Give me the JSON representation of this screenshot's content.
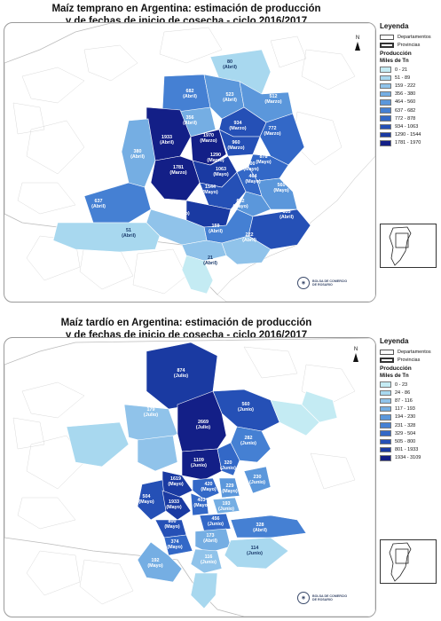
{
  "maps": [
    {
      "title_line1": "Maíz temprano en Argentina: estimación de producción",
      "title_line2": "y de fechas de inicio de cosecha - ciclo 2016/2017",
      "north_label": "N",
      "logo_text_1": "BOLSA DE COMERCIO",
      "logo_text_2": "DE ROSARIO",
      "legend": {
        "title": "Leyenda",
        "item_departamentos": "Departamentos",
        "item_provincias": "Provincias",
        "subtitle": "Producción",
        "units": "Miles de Tn",
        "classes": [
          {
            "label": "0 - 21",
            "color": "#c4ebf3"
          },
          {
            "label": "51 - 89",
            "color": "#a8d8ef"
          },
          {
            "label": "159 - 222",
            "color": "#90c3ea"
          },
          {
            "label": "356 - 380",
            "color": "#75aee3"
          },
          {
            "label": "464 - 560",
            "color": "#5b97db"
          },
          {
            "label": "637 - 682",
            "color": "#4580d3"
          },
          {
            "label": "772 - 878",
            "color": "#3368c7"
          },
          {
            "label": "934 - 1063",
            "color": "#2550b6"
          },
          {
            "label": "1290 - 1544",
            "color": "#1a3aa2"
          },
          {
            "label": "1781 - 1970",
            "color": "#131f87"
          }
        ]
      },
      "zones": [
        {
          "value": "80",
          "period": "(Abril)"
        },
        {
          "value": "682",
          "period": "(Abril)"
        },
        {
          "value": "523",
          "period": "(Abril)"
        },
        {
          "value": "512",
          "period": "(Marzo)"
        },
        {
          "value": "356",
          "period": "(Abril)"
        },
        {
          "value": "934",
          "period": "(Marzo)"
        },
        {
          "value": "772",
          "period": "(Marzo)"
        },
        {
          "value": "1933",
          "period": "(Abril)"
        },
        {
          "value": "1970",
          "period": "(Marzo)"
        },
        {
          "value": "960",
          "period": "(Marzo)"
        },
        {
          "value": "380",
          "period": "(Abril)"
        },
        {
          "value": "1290",
          "period": "(Marzo)"
        },
        {
          "value": "878",
          "period": "(Mayo)"
        },
        {
          "value": "1781",
          "period": "(Marzo)"
        },
        {
          "value": "1063",
          "period": "(Mayo)"
        },
        {
          "value": "800",
          "period": "(Mayo)"
        },
        {
          "value": "464",
          "period": "(Mayo)"
        },
        {
          "value": "1544",
          "period": "(Mayo)"
        },
        {
          "value": "560",
          "period": "(Mayo)"
        },
        {
          "value": "637",
          "period": "(Abril)"
        },
        {
          "value": "642",
          "period": "(Mayo)"
        },
        {
          "value": "208",
          "period": "(Mayo)"
        },
        {
          "value": "835",
          "period": "(Abril)"
        },
        {
          "value": "51",
          "period": "(Abril)"
        },
        {
          "value": "159",
          "period": "(Abril)"
        },
        {
          "value": "222",
          "period": "(Abril)"
        },
        {
          "value": "21",
          "period": "(Abril)"
        }
      ]
    },
    {
      "title_line1": "Maíz tardío en Argentina: estimación de producción",
      "title_line2": "y de fechas de inicio de cosecha - ciclo 2016/2017",
      "north_label": "N",
      "logo_text_1": "BOLSA DE COMERCIO",
      "logo_text_2": "DE ROSARIO",
      "legend": {
        "title": "Leyenda",
        "item_departamentos": "Departamentos",
        "item_provincias": "Provincias",
        "subtitle": "Producción",
        "units": "Miles de Tn",
        "classes": [
          {
            "label": "0 - 23",
            "color": "#c4ebf3"
          },
          {
            "label": "24 - 86",
            "color": "#a8d8ef"
          },
          {
            "label": "87 - 116",
            "color": "#90c3ea"
          },
          {
            "label": "117 - 193",
            "color": "#75aee3"
          },
          {
            "label": "194 - 230",
            "color": "#5b97db"
          },
          {
            "label": "231 - 328",
            "color": "#4580d3"
          },
          {
            "label": "329 - 504",
            "color": "#3368c7"
          },
          {
            "label": "505 - 800",
            "color": "#2550b6"
          },
          {
            "label": "801 - 1933",
            "color": "#1a3aa2"
          },
          {
            "label": "1934 - 3109",
            "color": "#131f87"
          }
        ]
      },
      "zones": [
        {
          "value": "874",
          "period": "(Julio)"
        },
        {
          "value": "179",
          "period": "(Julio)"
        },
        {
          "value": "560",
          "period": "(Junio)"
        },
        {
          "value": "2669",
          "period": "(Julio)"
        },
        {
          "value": "282",
          "period": "(Junio)"
        },
        {
          "value": "1109",
          "period": "(Junio)"
        },
        {
          "value": "320",
          "period": "(Junio)"
        },
        {
          "value": "1619",
          "period": "(Mayo)"
        },
        {
          "value": "420",
          "period": "(Mayo)"
        },
        {
          "value": "229",
          "period": "(Mayo)"
        },
        {
          "value": "230",
          "period": "(Junio)"
        },
        {
          "value": "504",
          "period": "(Mayo)"
        },
        {
          "value": "1933",
          "period": "(Mayo)"
        },
        {
          "value": "403",
          "period": "(Mayo)"
        },
        {
          "value": "193",
          "period": "(Junio)"
        },
        {
          "value": "800",
          "period": "(Mayo)"
        },
        {
          "value": "456",
          "period": "(Junio)"
        },
        {
          "value": "374",
          "period": "(Mayo)"
        },
        {
          "value": "173",
          "period": "(Abril)"
        },
        {
          "value": "328",
          "period": "(Abril)"
        },
        {
          "value": "192",
          "period": "(Mayo)"
        },
        {
          "value": "116",
          "period": "(Junio)"
        },
        {
          "value": "114",
          "period": "(Junio)"
        }
      ]
    }
  ]
}
